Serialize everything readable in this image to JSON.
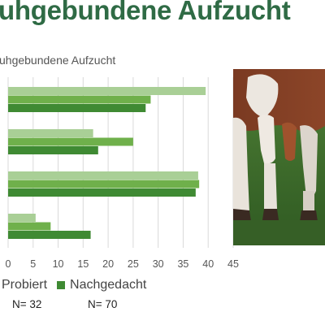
{
  "slide": {
    "title": "uhgebundene Aufzucht",
    "note_left": "N= 32",
    "note_right": "N= 70"
  },
  "colors": {
    "title": "#2f6b45",
    "series_light": "#a9cf96",
    "series_mid": "#6fb04b",
    "series_dark": "#3f8a33"
  },
  "photo": {
    "icon": "cow-legs-photo"
  },
  "chart_data": {
    "type": "bar",
    "orientation": "horizontal",
    "title": "kuhgebundene Aufzucht",
    "categories": [
      "",
      "",
      "",
      ""
    ],
    "series": [
      {
        "name": "Probiert",
        "values": [
          39.5,
          17,
          38,
          5.5
        ]
      },
      {
        "name": "",
        "values": [
          28.5,
          25,
          38.2,
          8.5
        ]
      },
      {
        "name": "Nachgedacht",
        "values": [
          27.5,
          18,
          37.5,
          16.5
        ]
      }
    ],
    "xlim": [
      0,
      45
    ],
    "xticks": [
      "0",
      "5",
      "10",
      "15",
      "20",
      "25",
      "30",
      "35",
      "40",
      "45"
    ],
    "grid": true,
    "legend": {
      "placement": "bottom",
      "entries": [
        "Probiert",
        "Nachgedacht"
      ]
    }
  }
}
